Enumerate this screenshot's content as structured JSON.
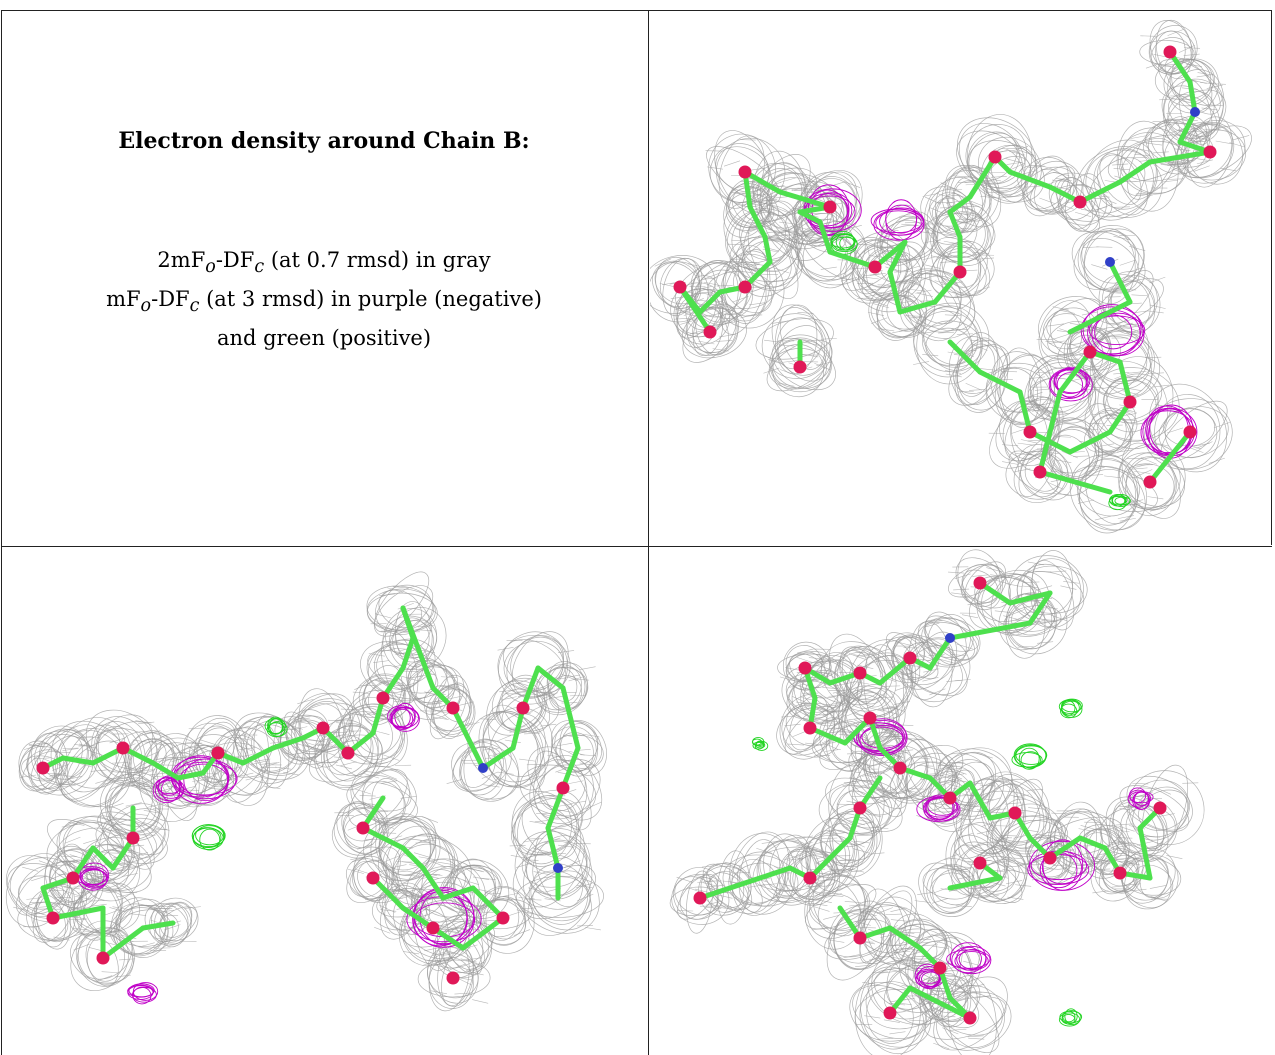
{
  "caption": {
    "title": "Electron density around Chain B:",
    "line1": {
      "prefix": "2mF",
      "sub1": "o",
      "mid": "-DF",
      "sub2": "c",
      "suffix": " (at 0.7 rmsd) in gray"
    },
    "line2": {
      "prefix": "mF",
      "sub1": "o",
      "mid": "-DF",
      "sub2": "c",
      "suffix": " (at 3 rmsd) in purple (negative)"
    },
    "line3": "and green (positive)"
  },
  "colors": {
    "mesh_gray": "#9a9a9a",
    "negative_purple": "#c000c8",
    "positive_green": "#22d422",
    "bond_green": "#4ee04e",
    "oxygen_red": "#e01858",
    "nitrogen_blue": "#3040c8",
    "border": "#222222"
  },
  "panels": [
    {
      "name": "view-top-right",
      "content": "model of chain B with electron density mesh"
    },
    {
      "name": "view-bottom-left",
      "content": "model of chain B with electron density mesh"
    },
    {
      "name": "view-bottom-right",
      "content": "model of chain B with electron density mesh"
    }
  ]
}
